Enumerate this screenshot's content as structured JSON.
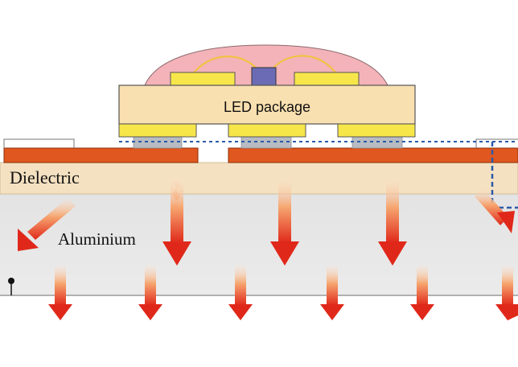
{
  "diagram": {
    "labels": {
      "led_package": "LED package",
      "dielectric": "Dielectric",
      "aluminium": "Aluminium"
    },
    "colors": {
      "copper": "#e0571f",
      "dielectric": "#f4e1c1",
      "aluminium": "#e6e6e6",
      "package_body": "#f9e0b0",
      "pads": "#f7e64a",
      "dome": "#f3b3b8",
      "chip": "#6b6bb5",
      "solder": "#b8bcc2",
      "dashed_outline": "#2a5aa8",
      "heat_arrow_dark": "#e0281a",
      "heat_arrow_light": "#f9d3b0"
    },
    "icons": [
      "heat-flow-arrow"
    ]
  }
}
